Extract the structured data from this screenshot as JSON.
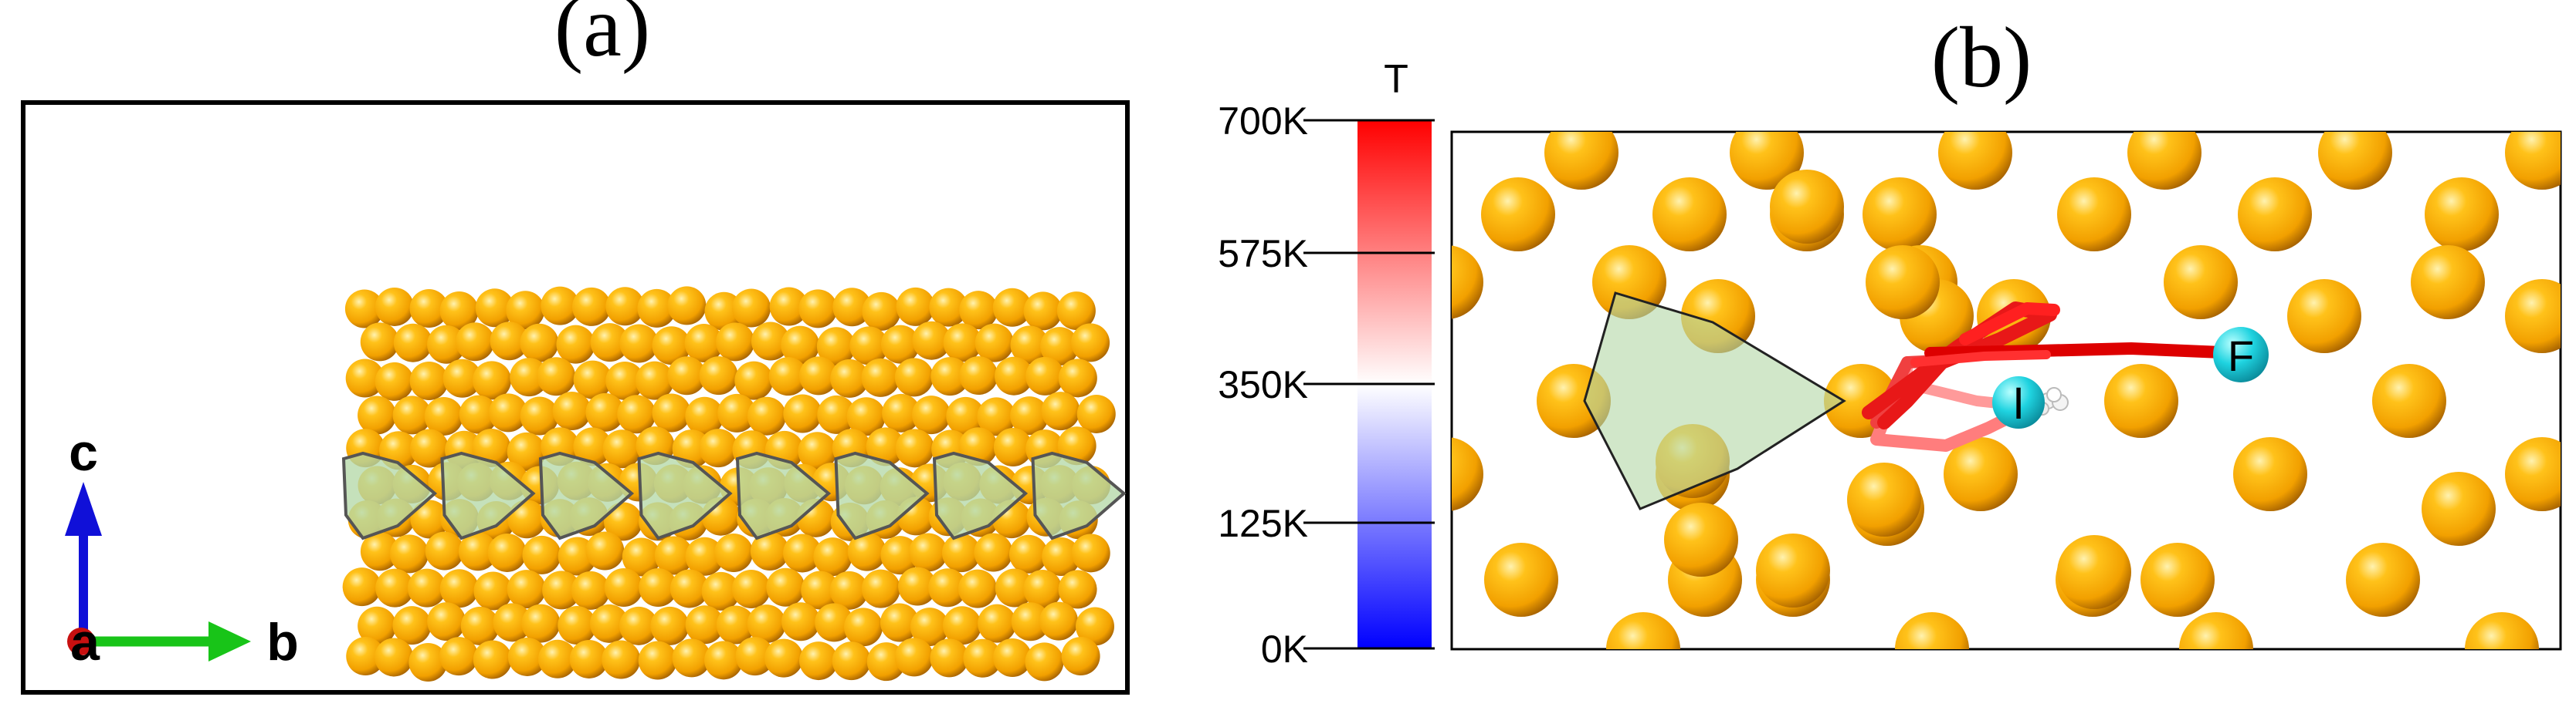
{
  "panel_a": {
    "label": "(a)",
    "axes": {
      "c": "c",
      "a": "a",
      "b": "b"
    }
  },
  "panel_b": {
    "label": "(b)",
    "colorbar": {
      "title": "T",
      "ticks": [
        "700K",
        "575K",
        "350K",
        "125K",
        "0K"
      ],
      "colors": {
        "hot": "#ff0000",
        "mid": "#ffffff",
        "cold": "#0000ff"
      }
    },
    "markers": {
      "initial": "I",
      "final": "F"
    }
  },
  "colors": {
    "atom": "#f6a800",
    "atom_light": "#ffe07a",
    "atom_dark": "#b06a00",
    "polygon_fill": "#b5d9a8",
    "marker": "#1fd3e0",
    "axis_c": "#1010d8",
    "axis_b": "#18c418",
    "axis_a": "#c81010"
  }
}
